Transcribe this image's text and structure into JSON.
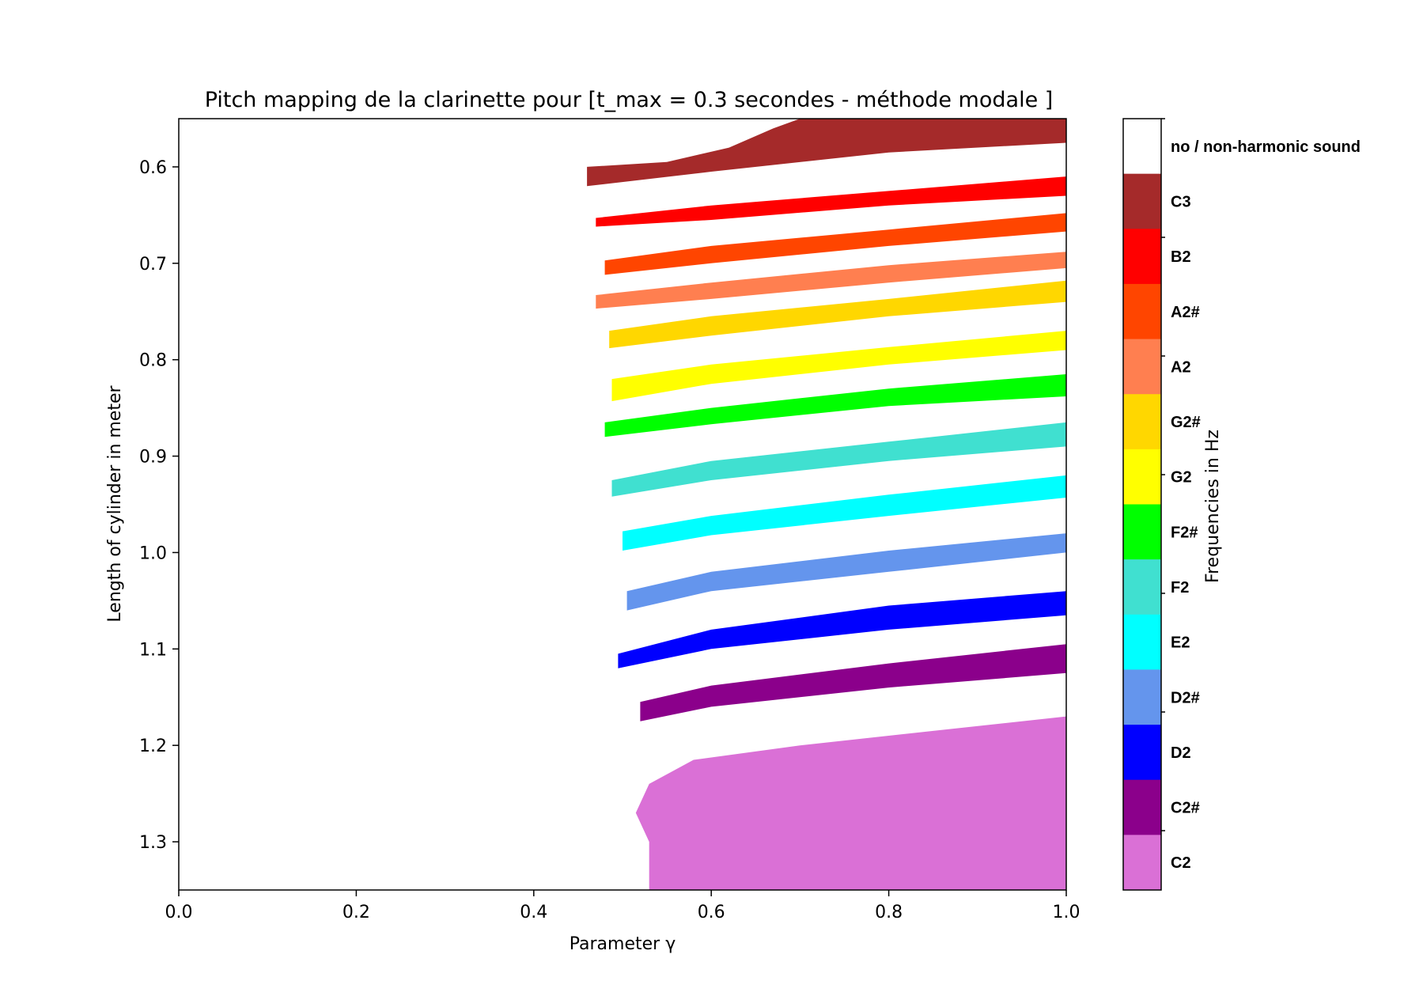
{
  "chart_data": {
    "type": "heatmap",
    "title": "Pitch mapping de la clarinette pour [t_max = 0.3 secondes - méthode  modale ]",
    "xlabel": "Parameter γ",
    "ylabel": "Length of cylinder in meter",
    "colorbar_label": "Frequencies in Hz",
    "xlim": [
      0.0,
      1.0
    ],
    "ylim": [
      1.35,
      0.55
    ],
    "x_ticks": [
      "0.0",
      "0.2",
      "0.4",
      "0.6",
      "0.8",
      "1.0"
    ],
    "y_ticks": [
      "0.6",
      "0.7",
      "0.8",
      "0.9",
      "1.0",
      "1.1",
      "1.2",
      "1.3"
    ],
    "categories": [
      {
        "label": "no / non-harmonic sound",
        "color": "#ffffff"
      },
      {
        "label": "C3",
        "color": "#a52a2a"
      },
      {
        "label": "B2",
        "color": "#ff0000"
      },
      {
        "label": "A2#",
        "color": "#ff4500"
      },
      {
        "label": "A2",
        "color": "#ff7f50"
      },
      {
        "label": "G2#",
        "color": "#ffd700"
      },
      {
        "label": "G2",
        "color": "#ffff00"
      },
      {
        "label": "F2#",
        "color": "#00ff00"
      },
      {
        "label": "F2",
        "color": "#40e0d0"
      },
      {
        "label": "E2",
        "color": "#00ffff"
      },
      {
        "label": "D2#",
        "color": "#6495ed"
      },
      {
        "label": "D2",
        "color": "#0000ff"
      },
      {
        "label": "C2#",
        "color": "#8b008b"
      },
      {
        "label": "C2",
        "color": "#da70d6"
      }
    ],
    "regions": [
      {
        "note": "C3",
        "start_x": 0.455,
        "lower": [
          [
            0.46,
            0.62
          ],
          [
            0.6,
            0.605
          ],
          [
            0.8,
            0.585
          ],
          [
            1.0,
            0.575
          ]
        ],
        "upper": [
          [
            0.46,
            0.6
          ],
          [
            0.55,
            0.595
          ],
          [
            0.62,
            0.58
          ],
          [
            0.67,
            0.56
          ],
          [
            0.7,
            0.55
          ],
          [
            1.0,
            0.55
          ]
        ]
      },
      {
        "note": "B2",
        "start_x": 0.47,
        "lower": [
          [
            0.47,
            0.662
          ],
          [
            0.6,
            0.655
          ],
          [
            0.8,
            0.64
          ],
          [
            1.0,
            0.63
          ]
        ],
        "upper": [
          [
            0.47,
            0.653
          ],
          [
            0.6,
            0.64
          ],
          [
            0.8,
            0.625
          ],
          [
            1.0,
            0.61
          ]
        ]
      },
      {
        "note": "A2#",
        "start_x": 0.48,
        "lower": [
          [
            0.48,
            0.712
          ],
          [
            0.6,
            0.7
          ],
          [
            0.8,
            0.682
          ],
          [
            1.0,
            0.667
          ]
        ],
        "upper": [
          [
            0.48,
            0.697
          ],
          [
            0.6,
            0.682
          ],
          [
            0.8,
            0.665
          ],
          [
            1.0,
            0.648
          ]
        ]
      },
      {
        "note": "A2",
        "start_x": 0.47,
        "lower": [
          [
            0.47,
            0.747
          ],
          [
            0.6,
            0.737
          ],
          [
            0.8,
            0.72
          ],
          [
            1.0,
            0.705
          ]
        ],
        "upper": [
          [
            0.47,
            0.733
          ],
          [
            0.6,
            0.72
          ],
          [
            0.8,
            0.702
          ],
          [
            1.0,
            0.688
          ]
        ]
      },
      {
        "note": "G2#",
        "start_x": 0.485,
        "lower": [
          [
            0.485,
            0.788
          ],
          [
            0.6,
            0.775
          ],
          [
            0.8,
            0.755
          ],
          [
            1.0,
            0.74
          ]
        ],
        "upper": [
          [
            0.485,
            0.77
          ],
          [
            0.6,
            0.755
          ],
          [
            0.8,
            0.737
          ],
          [
            1.0,
            0.718
          ]
        ]
      },
      {
        "note": "G2",
        "start_x": 0.488,
        "lower": [
          [
            0.488,
            0.843
          ],
          [
            0.6,
            0.825
          ],
          [
            0.8,
            0.805
          ],
          [
            1.0,
            0.79
          ]
        ],
        "upper": [
          [
            0.488,
            0.82
          ],
          [
            0.6,
            0.805
          ],
          [
            0.8,
            0.787
          ],
          [
            1.0,
            0.77
          ]
        ]
      },
      {
        "note": "F2#",
        "start_x": 0.48,
        "lower": [
          [
            0.48,
            0.88
          ],
          [
            0.6,
            0.867
          ],
          [
            0.8,
            0.848
          ],
          [
            1.0,
            0.838
          ]
        ],
        "upper": [
          [
            0.48,
            0.865
          ],
          [
            0.6,
            0.85
          ],
          [
            0.8,
            0.83
          ],
          [
            1.0,
            0.815
          ]
        ]
      },
      {
        "note": "F2",
        "start_x": 0.488,
        "lower": [
          [
            0.488,
            0.942
          ],
          [
            0.6,
            0.925
          ],
          [
            0.8,
            0.905
          ],
          [
            1.0,
            0.89
          ]
        ],
        "upper": [
          [
            0.488,
            0.925
          ],
          [
            0.6,
            0.905
          ],
          [
            0.8,
            0.885
          ],
          [
            1.0,
            0.865
          ]
        ]
      },
      {
        "note": "E2",
        "start_x": 0.5,
        "lower": [
          [
            0.5,
            0.998
          ],
          [
            0.6,
            0.982
          ],
          [
            0.8,
            0.962
          ],
          [
            1.0,
            0.943
          ]
        ],
        "upper": [
          [
            0.5,
            0.978
          ],
          [
            0.6,
            0.962
          ],
          [
            0.8,
            0.94
          ],
          [
            1.0,
            0.92
          ]
        ]
      },
      {
        "note": "D2#",
        "start_x": 0.505,
        "lower": [
          [
            0.505,
            1.06
          ],
          [
            0.6,
            1.04
          ],
          [
            0.8,
            1.02
          ],
          [
            1.0,
            1.0
          ]
        ],
        "upper": [
          [
            0.505,
            1.04
          ],
          [
            0.6,
            1.02
          ],
          [
            0.8,
            0.998
          ],
          [
            1.0,
            0.98
          ]
        ]
      },
      {
        "note": "D2",
        "start_x": 0.495,
        "lower": [
          [
            0.495,
            1.12
          ],
          [
            0.6,
            1.1
          ],
          [
            0.8,
            1.08
          ],
          [
            1.0,
            1.065
          ]
        ],
        "upper": [
          [
            0.495,
            1.105
          ],
          [
            0.6,
            1.08
          ],
          [
            0.8,
            1.055
          ],
          [
            1.0,
            1.04
          ]
        ]
      },
      {
        "note": "C2#",
        "start_x": 0.52,
        "lower": [
          [
            0.52,
            1.175
          ],
          [
            0.6,
            1.16
          ],
          [
            0.8,
            1.14
          ],
          [
            1.0,
            1.125
          ]
        ],
        "upper": [
          [
            0.52,
            1.155
          ],
          [
            0.6,
            1.138
          ],
          [
            0.8,
            1.115
          ],
          [
            1.0,
            1.095
          ]
        ]
      },
      {
        "note": "C2",
        "start_x": 0.515,
        "lower": [
          [
            0.515,
            1.35
          ],
          [
            1.0,
            1.35
          ]
        ],
        "upper": [
          [
            0.53,
            1.35
          ],
          [
            0.53,
            1.3
          ],
          [
            0.515,
            1.27
          ],
          [
            0.53,
            1.24
          ],
          [
            0.58,
            1.215
          ],
          [
            0.7,
            1.2
          ],
          [
            0.85,
            1.185
          ],
          [
            1.0,
            1.17
          ]
        ]
      }
    ]
  }
}
